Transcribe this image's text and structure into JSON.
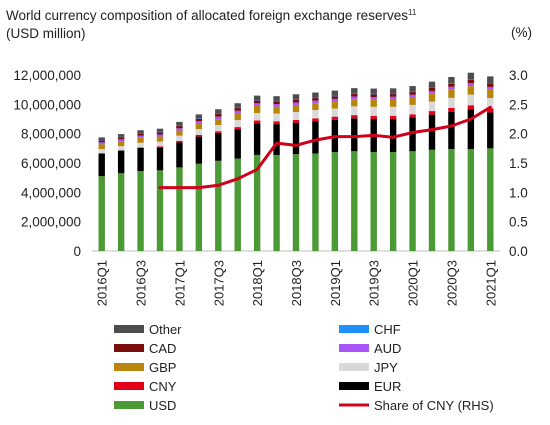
{
  "chart_data": {
    "type": "bar",
    "title": "World currency composition of allocated foreign exchange reserves",
    "title_superscript": "11",
    "subtitle": "(USD million)",
    "y2_unit_label": "(%)",
    "categories": [
      "2016Q1",
      "2016Q2",
      "2016Q3",
      "2016Q4",
      "2017Q1",
      "2017Q2",
      "2017Q3",
      "2017Q4",
      "2018Q1",
      "2018Q2",
      "2018Q3",
      "2018Q4",
      "2019Q1",
      "2019Q2",
      "2019Q3",
      "2019Q4",
      "2020Q1",
      "2020Q2",
      "2020Q3",
      "2020Q4",
      "2021Q1"
    ],
    "x_tick_labels": [
      "2016Q1",
      "",
      "2016Q3",
      "",
      "2017Q1",
      "",
      "2017Q3",
      "",
      "2018Q1",
      "",
      "2018Q3",
      "",
      "2019Q1",
      "",
      "2019Q3",
      "",
      "2020Q1",
      "",
      "2020Q3",
      "",
      "2021Q1"
    ],
    "ylim": [
      0,
      12000000
    ],
    "y_ticks": [
      "0",
      "2,000,000",
      "4,000,000",
      "6,000,000",
      "8,000,000",
      "10,000,000",
      "12,000,000"
    ],
    "y2lim": [
      0,
      3.0
    ],
    "y2_ticks": [
      "0.0",
      "0.5",
      "1.0",
      "1.5",
      "2.0",
      "2.5",
      "3.0"
    ],
    "stacked": true,
    "series": [
      {
        "name": "USD",
        "color": "#4b9a36",
        "values": [
          5100000,
          5300000,
          5450000,
          5500000,
          5700000,
          5950000,
          6150000,
          6300000,
          6550000,
          6550000,
          6600000,
          6650000,
          6750000,
          6800000,
          6750000,
          6750000,
          6800000,
          6900000,
          6950000,
          6950000,
          7000000
        ]
      },
      {
        "name": "EUR",
        "color": "#000000",
        "values": [
          1550000,
          1550000,
          1600000,
          1550000,
          1700000,
          1850000,
          1900000,
          2000000,
          2150000,
          2100000,
          2150000,
          2200000,
          2200000,
          2250000,
          2250000,
          2250000,
          2300000,
          2400000,
          2550000,
          2700000,
          2450000
        ]
      },
      {
        "name": "CNY",
        "color": "#e3001b",
        "values": [
          0,
          0,
          0,
          85000,
          105000,
          110000,
          120000,
          150000,
          200000,
          195000,
          190000,
          200000,
          210000,
          215000,
          220000,
          220000,
          220000,
          240000,
          260000,
          290000,
          290000
        ]
      },
      {
        "name": "JPY",
        "color": "#d9d9d9",
        "values": [
          300000,
          300000,
          330000,
          330000,
          360000,
          400000,
          420000,
          480000,
          510000,
          530000,
          540000,
          560000,
          550000,
          600000,
          610000,
          610000,
          640000,
          650000,
          680000,
          720000,
          690000
        ]
      },
      {
        "name": "GBP",
        "color": "#b8860b",
        "values": [
          330000,
          330000,
          340000,
          340000,
          350000,
          380000,
          400000,
          450000,
          480000,
          470000,
          480000,
          470000,
          480000,
          480000,
          490000,
          500000,
          510000,
          530000,
          560000,
          580000,
          560000
        ]
      },
      {
        "name": "AUD",
        "color": "#a855f7",
        "values": [
          130000,
          135000,
          140000,
          140000,
          150000,
          160000,
          170000,
          180000,
          180000,
          175000,
          170000,
          170000,
          180000,
          185000,
          180000,
          185000,
          180000,
          190000,
          200000,
          210000,
          200000
        ]
      },
      {
        "name": "CAD",
        "color": "#7b0d0d",
        "values": [
          140000,
          150000,
          160000,
          160000,
          170000,
          180000,
          200000,
          200000,
          200000,
          200000,
          200000,
          190000,
          190000,
          200000,
          200000,
          200000,
          200000,
          220000,
          220000,
          240000,
          250000
        ]
      },
      {
        "name": "CHF",
        "color": "#1e90ff",
        "values": [
          15000,
          15000,
          15000,
          15000,
          15000,
          15000,
          15000,
          15000,
          15000,
          15000,
          15000,
          15000,
          15000,
          15000,
          15000,
          15000,
          15000,
          15000,
          15000,
          15000,
          15000
        ]
      },
      {
        "name": "Other",
        "color": "#4d4d4d",
        "values": [
          180000,
          190000,
          200000,
          220000,
          250000,
          270000,
          290000,
          300000,
          310000,
          320000,
          340000,
          350000,
          360000,
          360000,
          360000,
          360000,
          380000,
          400000,
          430000,
          450000,
          450000
        ]
      }
    ],
    "line_series": {
      "name": "Share of CNY (RHS)",
      "color": "#d0021b",
      "axis": "right",
      "values": [
        null,
        null,
        null,
        1.08,
        1.08,
        1.08,
        1.12,
        1.23,
        1.39,
        1.84,
        1.8,
        1.89,
        1.95,
        1.95,
        1.97,
        1.94,
        2.02,
        2.07,
        2.13,
        2.25,
        2.45
      ]
    },
    "legend": {
      "placement": "bottom",
      "items": [
        {
          "label": "Other",
          "color": "#4d4d4d",
          "kind": "bar"
        },
        {
          "label": "CHF",
          "color": "#1e90ff",
          "kind": "bar"
        },
        {
          "label": "CAD",
          "color": "#7b0d0d",
          "kind": "bar"
        },
        {
          "label": "AUD",
          "color": "#a855f7",
          "kind": "bar"
        },
        {
          "label": "GBP",
          "color": "#b8860b",
          "kind": "bar"
        },
        {
          "label": "JPY",
          "color": "#d9d9d9",
          "kind": "bar"
        },
        {
          "label": "CNY",
          "color": "#e3001b",
          "kind": "bar"
        },
        {
          "label": "EUR",
          "color": "#000000",
          "kind": "bar"
        },
        {
          "label": "USD",
          "color": "#4b9a36",
          "kind": "bar"
        },
        {
          "label": "Share of CNY (RHS)",
          "color": "#d0021b",
          "kind": "line"
        }
      ]
    },
    "grid": false
  }
}
